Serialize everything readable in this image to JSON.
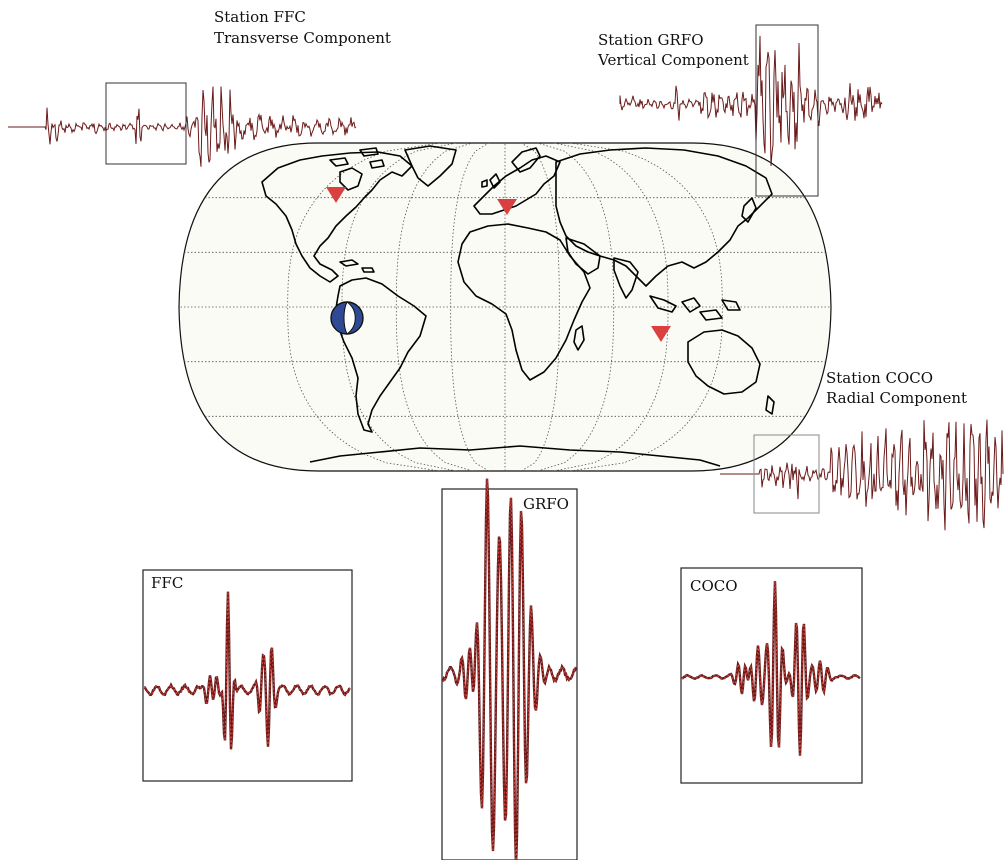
{
  "stations": {
    "ffc": {
      "title": "Station FFC",
      "component": "Transverse Component",
      "zoom_label": "FFC"
    },
    "grfo": {
      "title": "Station GRFO",
      "component": "Vertical Component",
      "zoom_label": "GRFO"
    },
    "coco": {
      "title": "Station COCO",
      "component": "Radial Component",
      "zoom_label": "COCO"
    }
  },
  "colors": {
    "waveform": "#6b1a1a",
    "synthetic": "#e04a40",
    "station_marker": "#d94040",
    "beachball_blue": "#2f4a94",
    "map_ocean": "#fbfbf6",
    "coastline": "#000000",
    "box": "#333333"
  },
  "icons": {
    "station": "triangle-down-icon",
    "event": "beachball-icon"
  }
}
